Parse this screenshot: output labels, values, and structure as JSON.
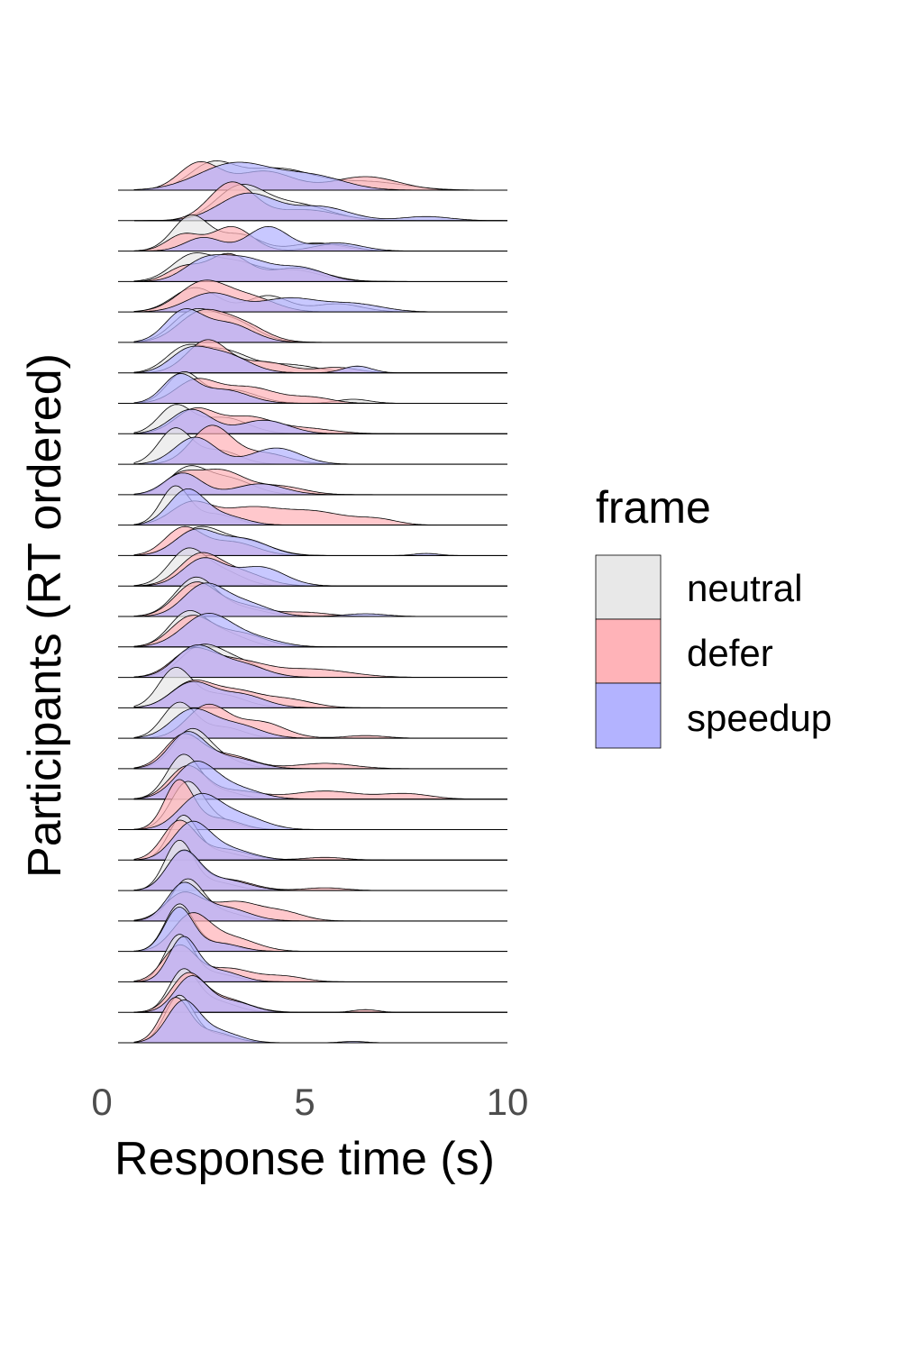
{
  "chart_data": {
    "type": "area",
    "subtype": "ridgeline-density",
    "xlabel": "Response time (s)",
    "ylabel": "Participants (RT ordered)",
    "xlim": [
      0,
      10
    ],
    "x_ticks": [
      0,
      5,
      10
    ],
    "x_tick_labels": [
      "0",
      "5",
      "10"
    ],
    "grid": false,
    "legend": {
      "title": "frame",
      "placement": "right",
      "entries": [
        {
          "label": "neutral",
          "color": "#e8e8e8"
        },
        {
          "label": "defer",
          "color": "#ffb3b8"
        },
        {
          "label": "speedup",
          "color": "#b3b3ff"
        }
      ]
    },
    "series_order": [
      "neutral",
      "defer",
      "speedup"
    ],
    "density_model": "each ridge is a sum of gaussian components [center_s, sd_s, weight]; order top (slowest participant) to bottom (fastest participant)",
    "participants": [
      {
        "neutral": [
          [
            2.7,
            0.55,
            0.9
          ],
          [
            4.3,
            0.9,
            0.8
          ],
          [
            6.6,
            0.9,
            0.3
          ]
        ],
        "defer": [
          [
            2.4,
            0.5,
            1.0
          ],
          [
            4.0,
            0.7,
            0.7
          ],
          [
            6.5,
            0.8,
            0.5
          ]
        ],
        "speedup": [
          [
            3.3,
            0.9,
            1.0
          ],
          [
            5.2,
            0.8,
            0.5
          ]
        ]
      },
      {
        "neutral": [
          [
            3.4,
            0.6,
            1.2
          ],
          [
            4.8,
            0.8,
            0.6
          ]
        ],
        "defer": [
          [
            3.2,
            0.55,
            1.4
          ],
          [
            5.0,
            0.8,
            0.4
          ]
        ],
        "speedup": [
          [
            3.6,
            0.7,
            1.0
          ],
          [
            5.4,
            0.7,
            0.5
          ],
          [
            8.0,
            0.6,
            0.15
          ]
        ]
      },
      {
        "neutral": [
          [
            2.2,
            0.45,
            1.3
          ],
          [
            3.4,
            0.5,
            0.6
          ],
          [
            5.3,
            0.6,
            0.3
          ]
        ],
        "defer": [
          [
            2.0,
            0.4,
            0.6
          ],
          [
            3.2,
            0.5,
            0.9
          ],
          [
            5.7,
            0.5,
            0.25
          ]
        ],
        "speedup": [
          [
            2.5,
            0.45,
            0.5
          ],
          [
            4.1,
            0.5,
            0.9
          ],
          [
            5.8,
            0.6,
            0.3
          ]
        ]
      },
      {
        "neutral": [
          [
            2.2,
            0.5,
            0.9
          ],
          [
            3.3,
            0.6,
            0.7
          ],
          [
            4.8,
            0.6,
            0.4
          ]
        ],
        "defer": [
          [
            2.0,
            0.4,
            0.5
          ],
          [
            3.1,
            0.5,
            1.0
          ],
          [
            4.8,
            0.7,
            0.5
          ]
        ],
        "speedup": [
          [
            2.5,
            0.5,
            0.7
          ],
          [
            3.5,
            0.6,
            0.8
          ],
          [
            4.9,
            0.6,
            0.5
          ]
        ]
      },
      {
        "neutral": [
          [
            2.3,
            0.55,
            0.9
          ],
          [
            4.1,
            0.5,
            0.6
          ],
          [
            5.8,
            0.6,
            0.3
          ]
        ],
        "defer": [
          [
            2.5,
            0.6,
            1.1
          ],
          [
            3.7,
            0.6,
            0.5
          ]
        ],
        "speedup": [
          [
            2.7,
            0.6,
            0.7
          ],
          [
            4.6,
            0.7,
            0.5
          ],
          [
            6.2,
            0.7,
            0.3
          ]
        ]
      },
      {
        "neutral": [
          [
            2.2,
            0.5,
            1.0
          ],
          [
            3.2,
            0.6,
            0.8
          ]
        ],
        "defer": [
          [
            2.4,
            0.55,
            1.0
          ],
          [
            3.4,
            0.6,
            0.7
          ]
        ],
        "speedup": [
          [
            2.0,
            0.45,
            1.1
          ],
          [
            3.1,
            0.6,
            0.7
          ]
        ]
      },
      {
        "neutral": [
          [
            2.0,
            0.45,
            0.8
          ],
          [
            3.0,
            0.6,
            0.8
          ],
          [
            4.6,
            0.7,
            0.3
          ]
        ],
        "defer": [
          [
            2.6,
            0.5,
            1.2
          ],
          [
            4.0,
            0.6,
            0.4
          ],
          [
            5.8,
            0.5,
            0.2
          ]
        ],
        "speedup": [
          [
            2.1,
            0.45,
            0.7
          ],
          [
            3.0,
            0.6,
            0.7
          ],
          [
            6.3,
            0.35,
            0.25
          ]
        ]
      },
      {
        "neutral": [
          [
            2.0,
            0.4,
            1.1
          ],
          [
            3.2,
            0.6,
            0.5
          ],
          [
            6.2,
            0.4,
            0.15
          ]
        ],
        "defer": [
          [
            2.3,
            0.5,
            0.8
          ],
          [
            3.6,
            0.7,
            0.6
          ],
          [
            5.2,
            0.5,
            0.2
          ]
        ],
        "speedup": [
          [
            1.9,
            0.4,
            1.0
          ],
          [
            3.0,
            0.6,
            0.5
          ]
        ]
      },
      {
        "neutral": [
          [
            1.8,
            0.4,
            1.0
          ],
          [
            3.0,
            0.6,
            0.6
          ]
        ],
        "defer": [
          [
            2.3,
            0.5,
            0.9
          ],
          [
            3.6,
            0.6,
            0.6
          ],
          [
            5.0,
            0.7,
            0.2
          ]
        ],
        "speedup": [
          [
            2.2,
            0.5,
            0.9
          ],
          [
            4.0,
            0.6,
            0.5
          ]
        ]
      },
      {
        "neutral": [
          [
            1.8,
            0.4,
            1.3
          ],
          [
            2.9,
            0.5,
            0.5
          ]
        ],
        "defer": [
          [
            2.7,
            0.5,
            1.4
          ],
          [
            4.0,
            0.6,
            0.4
          ]
        ],
        "speedup": [
          [
            2.3,
            0.5,
            1.0
          ],
          [
            4.3,
            0.6,
            0.6
          ]
        ]
      },
      {
        "neutral": [
          [
            2.1,
            0.45,
            0.9
          ],
          [
            3.1,
            0.6,
            0.6
          ]
        ],
        "defer": [
          [
            1.9,
            0.4,
            0.6
          ],
          [
            2.9,
            0.6,
            0.9
          ],
          [
            4.4,
            0.6,
            0.3
          ]
        ],
        "speedup": [
          [
            2.0,
            0.45,
            0.8
          ],
          [
            3.9,
            0.6,
            0.4
          ]
        ]
      },
      {
        "neutral": [
          [
            1.8,
            0.35,
            1.4
          ],
          [
            2.8,
            0.5,
            0.4
          ]
        ],
        "defer": [
          [
            2.2,
            0.5,
            0.8
          ],
          [
            3.6,
            0.7,
            0.6
          ],
          [
            5.2,
            0.8,
            0.5
          ],
          [
            6.8,
            0.5,
            0.2
          ]
        ],
        "speedup": [
          [
            2.1,
            0.45,
            1.3
          ],
          [
            3.1,
            0.5,
            0.3
          ]
        ]
      },
      {
        "neutral": [
          [
            2.4,
            0.55,
            1.0
          ],
          [
            3.6,
            0.6,
            0.5
          ]
        ],
        "defer": [
          [
            2.0,
            0.45,
            1.0
          ],
          [
            3.2,
            0.6,
            0.5
          ]
        ],
        "speedup": [
          [
            2.3,
            0.5,
            0.9
          ],
          [
            3.5,
            0.6,
            0.6
          ],
          [
            8.0,
            0.3,
            0.08
          ]
        ]
      },
      {
        "neutral": [
          [
            2.1,
            0.45,
            1.3
          ],
          [
            3.0,
            0.5,
            0.5
          ]
        ],
        "defer": [
          [
            2.4,
            0.5,
            1.1
          ],
          [
            3.4,
            0.6,
            0.5
          ]
        ],
        "speedup": [
          [
            2.5,
            0.5,
            1.0
          ],
          [
            3.9,
            0.6,
            0.7
          ]
        ]
      },
      {
        "neutral": [
          [
            2.3,
            0.5,
            1.4
          ],
          [
            3.4,
            0.6,
            0.3
          ]
        ],
        "defer": [
          [
            2.3,
            0.5,
            1.2
          ],
          [
            3.4,
            0.6,
            0.4
          ],
          [
            5.0,
            0.6,
            0.15
          ]
        ],
        "speedup": [
          [
            2.5,
            0.5,
            1.1
          ],
          [
            3.5,
            0.6,
            0.5
          ],
          [
            6.5,
            0.5,
            0.1
          ]
        ]
      },
      {
        "neutral": [
          [
            2.1,
            0.45,
            1.2
          ],
          [
            3.0,
            0.55,
            0.5
          ]
        ],
        "defer": [
          [
            2.2,
            0.5,
            1.1
          ],
          [
            3.4,
            0.6,
            0.5
          ]
        ],
        "speedup": [
          [
            2.6,
            0.6,
            1.2
          ],
          [
            3.8,
            0.6,
            0.3
          ]
        ]
      },
      {
        "neutral": [
          [
            2.4,
            0.5,
            1.0
          ],
          [
            3.3,
            0.6,
            0.6
          ]
        ],
        "defer": [
          [
            2.2,
            0.5,
            0.9
          ],
          [
            3.3,
            0.7,
            0.6
          ],
          [
            5.2,
            0.9,
            0.3
          ]
        ],
        "speedup": [
          [
            2.3,
            0.5,
            1.1
          ],
          [
            3.4,
            0.6,
            0.5
          ]
        ]
      },
      {
        "neutral": [
          [
            1.8,
            0.4,
            1.4
          ],
          [
            2.9,
            0.6,
            0.5
          ]
        ],
        "defer": [
          [
            2.2,
            0.5,
            0.9
          ],
          [
            3.3,
            0.6,
            0.6
          ],
          [
            4.6,
            0.6,
            0.3
          ]
        ],
        "speedup": [
          [
            2.2,
            0.5,
            0.9
          ],
          [
            3.4,
            0.6,
            0.5
          ]
        ]
      },
      {
        "neutral": [
          [
            1.9,
            0.4,
            1.3
          ],
          [
            3.0,
            0.5,
            0.4
          ]
        ],
        "defer": [
          [
            2.6,
            0.5,
            1.2
          ],
          [
            3.9,
            0.6,
            0.6
          ],
          [
            6.5,
            0.5,
            0.1
          ]
        ],
        "speedup": [
          [
            2.2,
            0.5,
            1.0
          ],
          [
            3.3,
            0.6,
            0.5
          ]
        ]
      },
      {
        "neutral": [
          [
            2.2,
            0.45,
            1.4
          ],
          [
            3.0,
            0.5,
            0.3
          ]
        ],
        "defer": [
          [
            2.0,
            0.45,
            1.2
          ],
          [
            3.1,
            0.6,
            0.5
          ],
          [
            5.5,
            0.7,
            0.2
          ]
        ],
        "speedup": [
          [
            2.1,
            0.45,
            1.3
          ],
          [
            3.2,
            0.6,
            0.4
          ]
        ]
      },
      {
        "neutral": [
          [
            2.0,
            0.4,
            1.6
          ],
          [
            2.9,
            0.5,
            0.3
          ]
        ],
        "defer": [
          [
            2.1,
            0.45,
            1.2
          ],
          [
            3.3,
            0.6,
            0.3
          ],
          [
            5.5,
            0.8,
            0.3
          ],
          [
            7.5,
            0.6,
            0.2
          ]
        ],
        "speedup": [
          [
            2.3,
            0.5,
            1.3
          ],
          [
            3.3,
            0.6,
            0.4
          ]
        ]
      },
      {
        "neutral": [
          [
            2.1,
            0.4,
            1.7
          ],
          [
            2.9,
            0.5,
            0.3
          ]
        ],
        "defer": [
          [
            1.9,
            0.35,
            1.8
          ],
          [
            2.9,
            0.5,
            0.4
          ]
        ],
        "speedup": [
          [
            2.4,
            0.5,
            1.2
          ],
          [
            3.4,
            0.6,
            0.5
          ]
        ]
      },
      {
        "neutral": [
          [
            2.0,
            0.35,
            1.6
          ],
          [
            2.9,
            0.5,
            0.3
          ]
        ],
        "defer": [
          [
            1.9,
            0.4,
            1.4
          ],
          [
            3.0,
            0.6,
            0.4
          ],
          [
            5.5,
            0.5,
            0.1
          ]
        ],
        "speedup": [
          [
            2.2,
            0.45,
            1.3
          ],
          [
            3.1,
            0.6,
            0.4
          ]
        ]
      },
      {
        "neutral": [
          [
            1.9,
            0.35,
            1.8
          ],
          [
            2.8,
            0.5,
            0.3
          ]
        ],
        "defer": [
          [
            2.0,
            0.4,
            1.4
          ],
          [
            3.1,
            0.6,
            0.4
          ],
          [
            5.5,
            0.5,
            0.1
          ]
        ],
        "speedup": [
          [
            2.0,
            0.4,
            1.4
          ],
          [
            3.0,
            0.6,
            0.4
          ]
        ]
      },
      {
        "neutral": [
          [
            2.1,
            0.4,
            1.5
          ],
          [
            3.0,
            0.5,
            0.3
          ]
        ],
        "defer": [
          [
            2.0,
            0.45,
            1.0
          ],
          [
            3.3,
            0.6,
            0.7
          ],
          [
            4.5,
            0.5,
            0.3
          ]
        ],
        "speedup": [
          [
            2.0,
            0.4,
            1.3
          ],
          [
            3.0,
            0.6,
            0.5
          ]
        ]
      },
      {
        "neutral": [
          [
            1.9,
            0.35,
            1.7
          ],
          [
            2.8,
            0.5,
            0.3
          ]
        ],
        "defer": [
          [
            2.2,
            0.45,
            1.3
          ],
          [
            3.2,
            0.6,
            0.5
          ]
        ],
        "speedup": [
          [
            1.9,
            0.35,
            1.6
          ],
          [
            2.9,
            0.5,
            0.3
          ]
        ]
      },
      {
        "neutral": [
          [
            1.9,
            0.35,
            1.7
          ],
          [
            2.8,
            0.5,
            0.3
          ]
        ],
        "defer": [
          [
            1.9,
            0.4,
            1.3
          ],
          [
            3.1,
            0.6,
            0.5
          ],
          [
            4.5,
            0.5,
            0.2
          ]
        ],
        "speedup": [
          [
            2.0,
            0.35,
            1.6
          ],
          [
            2.9,
            0.5,
            0.4
          ]
        ]
      },
      {
        "neutral": [
          [
            2.0,
            0.35,
            1.5
          ],
          [
            2.8,
            0.5,
            0.4
          ]
        ],
        "defer": [
          [
            2.1,
            0.4,
            1.3
          ],
          [
            3.0,
            0.6,
            0.5
          ],
          [
            6.5,
            0.3,
            0.1
          ]
        ],
        "speedup": [
          [
            2.2,
            0.4,
            1.3
          ],
          [
            3.2,
            0.5,
            0.4
          ]
        ]
      },
      {
        "neutral": [
          [
            1.9,
            0.35,
            1.7
          ],
          [
            2.8,
            0.5,
            0.3
          ]
        ],
        "defer": [
          [
            1.8,
            0.35,
            1.6
          ],
          [
            2.7,
            0.5,
            0.4
          ]
        ],
        "speedup": [
          [
            2.0,
            0.4,
            1.5
          ],
          [
            2.9,
            0.5,
            0.4
          ],
          [
            6.2,
            0.3,
            0.05
          ]
        ]
      }
    ]
  }
}
